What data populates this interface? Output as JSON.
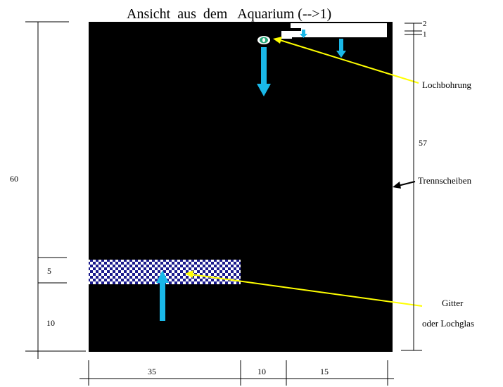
{
  "title": "Ansicht  aus  dem   Aquarium (-->1)",
  "labels": {
    "lochbohrung": "Lochbohrung",
    "trennscheiben": "Trennscheiben",
    "gitter": "Gitter",
    "oder_lochglas": "oder Lochglas"
  },
  "dimensions": {
    "total_height": "60",
    "grid_height": "5",
    "bottom_gap": "10",
    "right_height": "57",
    "top_2": "2",
    "top_1": "1",
    "width_left": "35",
    "width_mid": "10",
    "width_right": "15"
  },
  "colors": {
    "tank": "#000000",
    "arrow_flow": "#1ab8e8",
    "pointer": "#ffff00",
    "grid_a": "#1a1a8c",
    "grid_b": "#ffffff",
    "hole": "#2aa87a"
  }
}
